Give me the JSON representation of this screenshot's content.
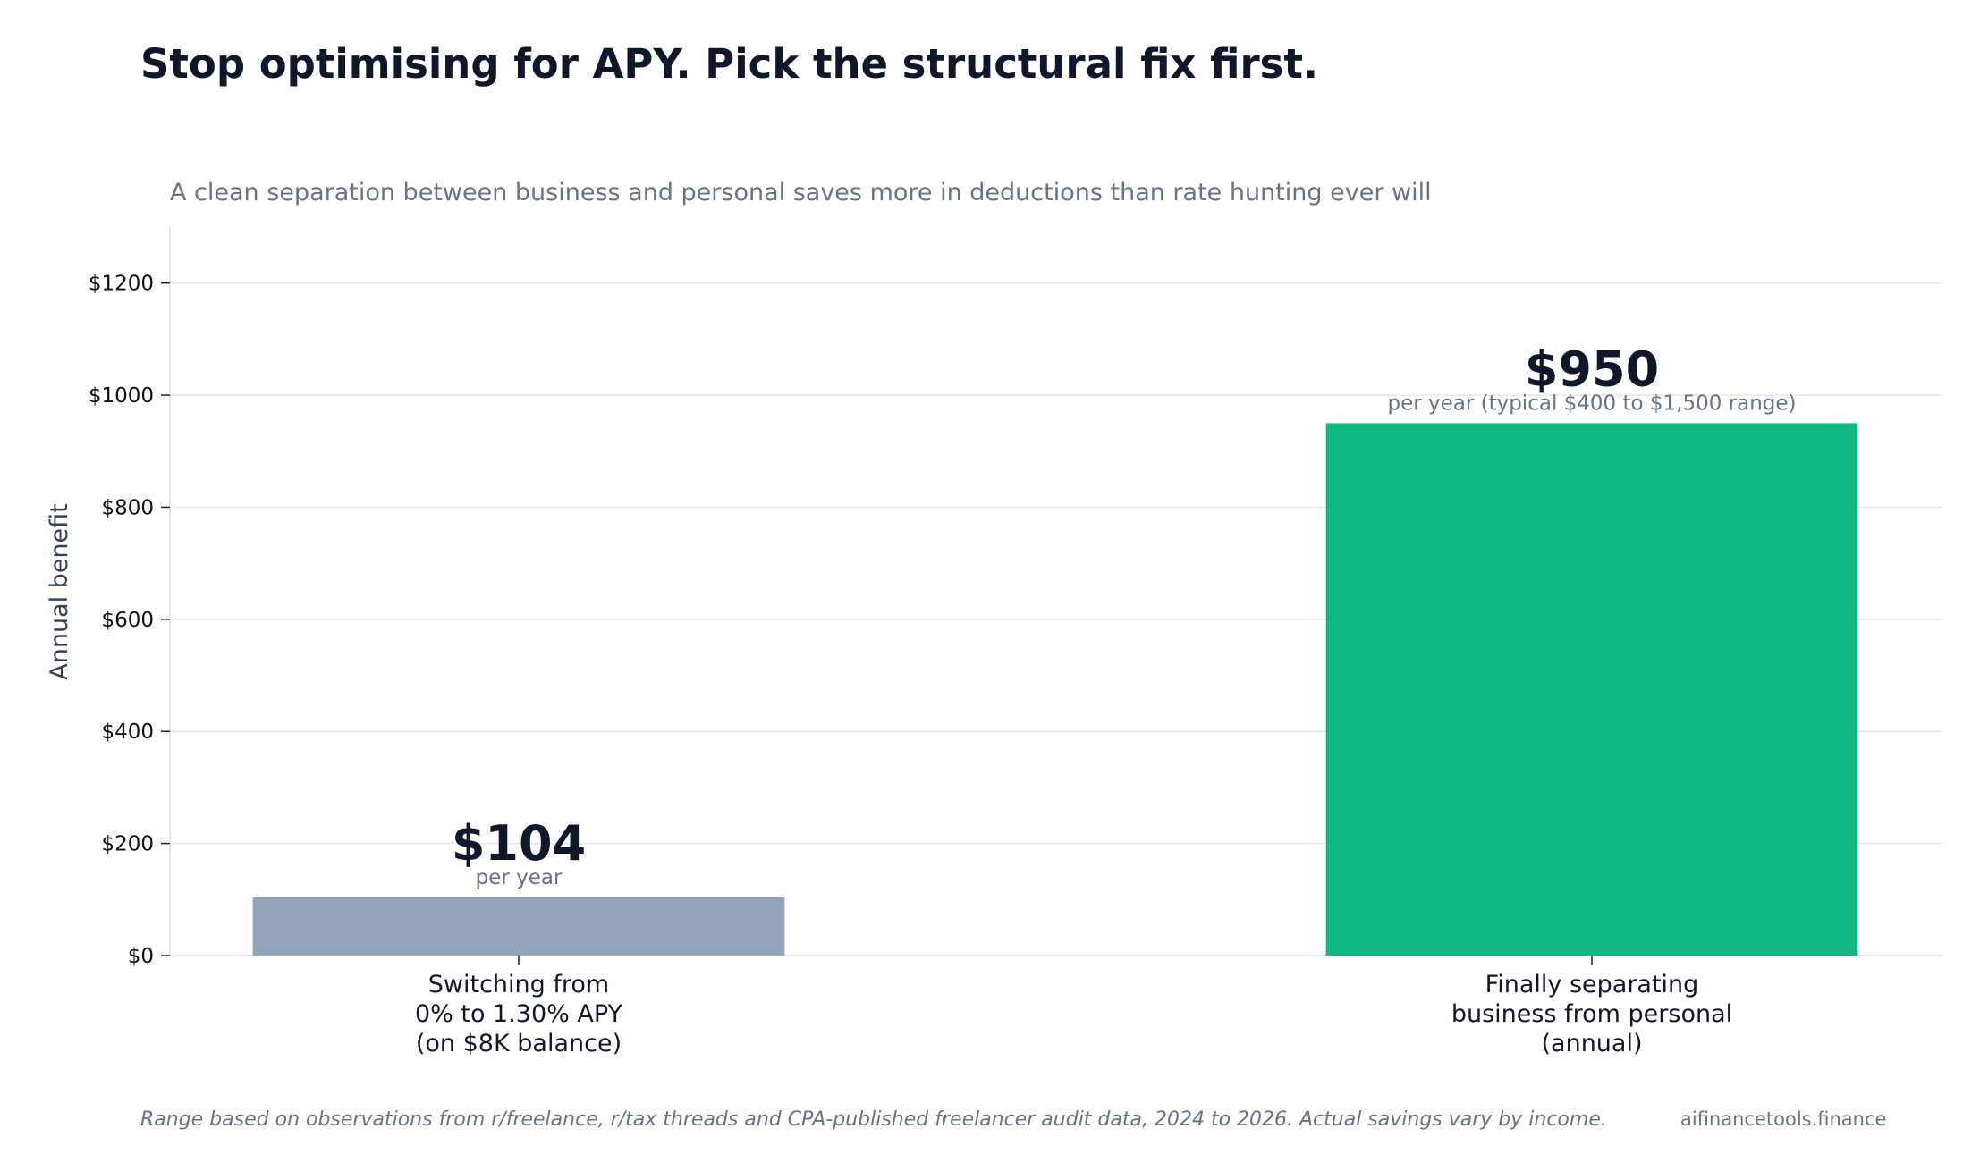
{
  "chart_data": {
    "type": "bar",
    "title": "Stop optimising for APY. Pick the structural fix first.",
    "subtitle": "A clean separation between business and personal saves more in deductions than rate hunting ever will",
    "ylabel": "Annual benefit",
    "xlabel": "",
    "ylim": [
      0,
      1300
    ],
    "yticks": [
      0,
      200,
      400,
      600,
      800,
      1000,
      1200
    ],
    "ytick_labels": [
      "$0",
      "$200",
      "$400",
      "$600",
      "$800",
      "$1000",
      "$1200"
    ],
    "grid": true,
    "categories": [
      [
        "Switching from",
        "0% to 1.30% APY",
        "(on $8K balance)"
      ],
      [
        "Finally separating",
        "business from personal",
        "(annual)"
      ]
    ],
    "values": [
      104,
      950
    ],
    "colors": [
      "#94a3b8",
      "#10b981"
    ],
    "data_labels": [
      "$104",
      "$950"
    ],
    "data_notes": [
      "per year",
      "per year (typical $400 to $1,500 range)"
    ]
  },
  "footnote": "Range based on observations from r/freelance, r/tax threads and CPA-published freelancer audit data, 2024 to 2026. Actual savings vary by income.",
  "credit": "aifinancetools.finance"
}
